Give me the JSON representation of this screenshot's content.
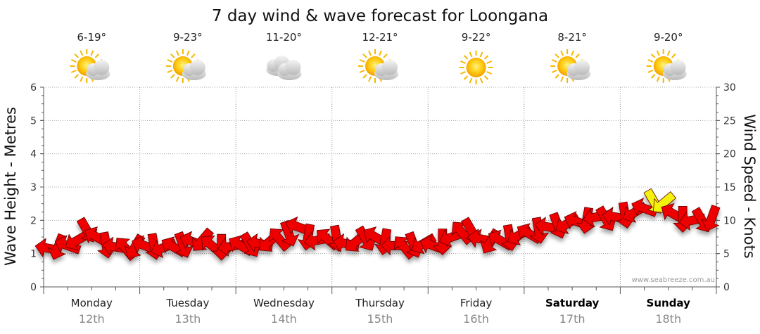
{
  "title": "7 day wind & wave forecast for Loongana",
  "watermark": "www.seabreeze.com.au",
  "colors": {
    "arrow": "#ee0000",
    "arrow_highlight": "#f2f20a",
    "arrow_stroke": "#660000"
  },
  "chart_data": {
    "type": "line",
    "left_axis": {
      "label": "Wave Height - Metres",
      "ylim": [
        0,
        6
      ],
      "ticks": [
        "0",
        "1",
        "2",
        "3",
        "4",
        "5",
        "6"
      ]
    },
    "right_axis": {
      "label": "Wind Speed - Knots",
      "ylim": [
        0,
        30
      ],
      "ticks": [
        "0",
        "5",
        "10",
        "15",
        "20",
        "25",
        "30"
      ]
    },
    "days": [
      {
        "name": "Monday",
        "date": "12th",
        "temp": "6-19°",
        "icon": "partly-cloudy-icon",
        "bold": false
      },
      {
        "name": "Tuesday",
        "date": "13th",
        "temp": "9-23°",
        "icon": "partly-cloudy-icon",
        "bold": false
      },
      {
        "name": "Wednesday",
        "date": "14th",
        "temp": "11-20°",
        "icon": "cloudy-icon",
        "bold": false
      },
      {
        "name": "Thursday",
        "date": "15th",
        "temp": "12-21°",
        "icon": "partly-cloudy-icon",
        "bold": false
      },
      {
        "name": "Friday",
        "date": "16th",
        "temp": "9-22°",
        "icon": "sunny-icon",
        "bold": false
      },
      {
        "name": "Saturday",
        "date": "17th",
        "temp": "8-21°",
        "icon": "partly-cloudy-icon",
        "bold": true
      },
      {
        "name": "Sunday",
        "date": "18th",
        "temp": "9-20°",
        "icon": "partly-cloudy-icon",
        "bold": true
      }
    ],
    "series": [
      {
        "name": "Wind Speed",
        "unit": "knots",
        "x_day_offset": [
          0.05,
          0.15,
          0.25,
          0.35,
          0.45,
          0.55,
          0.65,
          0.75,
          0.85,
          0.95,
          1.05,
          1.15,
          1.25,
          1.35,
          1.45,
          1.55,
          1.65,
          1.75,
          1.85,
          1.95,
          2.05,
          2.15,
          2.25,
          2.35,
          2.45,
          2.55,
          2.65,
          2.75,
          2.85,
          2.95,
          3.05,
          3.15,
          3.25,
          3.35,
          3.45,
          3.55,
          3.65,
          3.75,
          3.85,
          3.95,
          4.05,
          4.15,
          4.25,
          4.35,
          4.45,
          4.55,
          4.65,
          4.75,
          4.85,
          4.95,
          5.05,
          5.15,
          5.25,
          5.35,
          5.45,
          5.55,
          5.65,
          5.75,
          5.85,
          5.95,
          6.05,
          6.15,
          6.25,
          6.35,
          6.45,
          6.55,
          6.65,
          6.75,
          6.85,
          6.95
        ],
        "values": [
          5.8,
          6.0,
          6.2,
          7.0,
          8.5,
          7.5,
          6.3,
          6.0,
          5.8,
          6.0,
          6.2,
          6.1,
          5.9,
          6.0,
          6.3,
          6.8,
          7.0,
          6.2,
          6.0,
          6.1,
          6.2,
          6.3,
          6.5,
          6.8,
          7.2,
          8.0,
          9.0,
          7.5,
          7.0,
          7.2,
          7.3,
          6.5,
          6.8,
          7.2,
          7.5,
          6.8,
          6.2,
          6.0,
          6.3,
          6.5,
          6.2,
          6.8,
          7.5,
          8.2,
          8.5,
          7.2,
          6.8,
          7.0,
          7.4,
          7.8,
          8.0,
          8.5,
          9.0,
          9.2,
          9.5,
          9.8,
          10.0,
          10.5,
          10.2,
          10.5,
          10.8,
          11.2,
          11.8,
          12.8,
          12.6,
          11.0,
          10.2,
          10.0,
          10.0,
          10.3
        ],
        "direction_deg": [
          190,
          110,
          200,
          150,
          60,
          210,
          80,
          190,
          230,
          120,
          200,
          80,
          160,
          210,
          70,
          200,
          130,
          220,
          90,
          170,
          210,
          60,
          190,
          140,
          230,
          70,
          200,
          100,
          170,
          220,
          80,
          190,
          140,
          60,
          210,
          100,
          180,
          230,
          70,
          150,
          200,
          90,
          160,
          230,
          60,
          190,
          120,
          210,
          80,
          150,
          210,
          80,
          190,
          70,
          150,
          200,
          100,
          170,
          60,
          190,
          80,
          150,
          200,
          60,
          140,
          210,
          90,
          170,
          60,
          110
        ],
        "highlight": [
          false,
          false,
          false,
          false,
          false,
          false,
          false,
          false,
          false,
          false,
          false,
          false,
          false,
          false,
          false,
          false,
          false,
          false,
          false,
          false,
          false,
          false,
          false,
          false,
          false,
          false,
          false,
          false,
          false,
          false,
          false,
          false,
          false,
          false,
          false,
          false,
          false,
          false,
          false,
          false,
          false,
          false,
          false,
          false,
          false,
          false,
          false,
          false,
          false,
          false,
          false,
          false,
          false,
          false,
          false,
          false,
          false,
          false,
          false,
          false,
          false,
          false,
          false,
          true,
          true,
          false,
          false,
          false,
          false,
          false
        ]
      }
    ]
  }
}
